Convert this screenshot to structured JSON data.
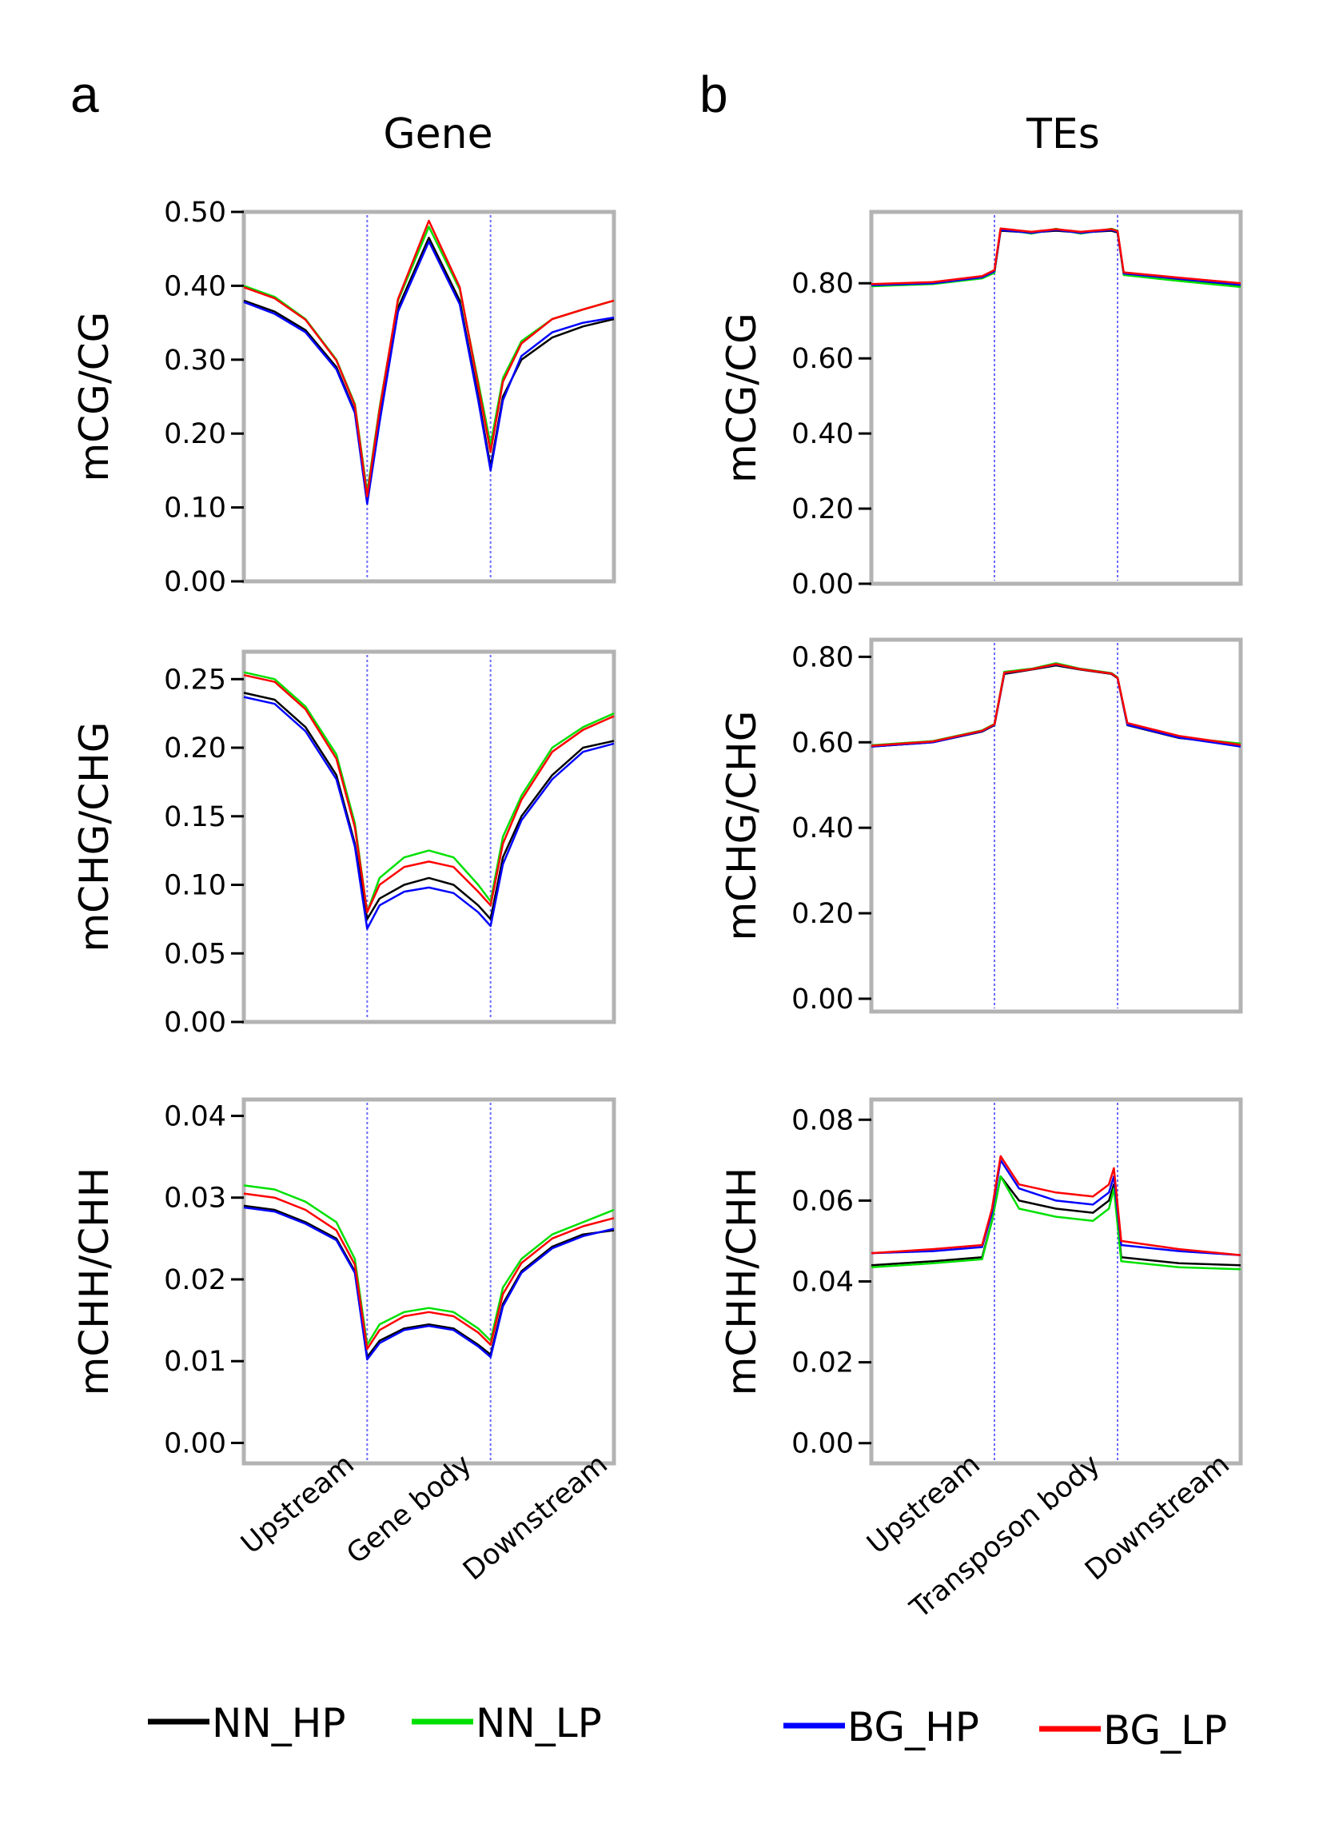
{
  "panels": {
    "a": {
      "letter": "a",
      "title": "Gene",
      "xlabels": [
        "Upstream",
        "Gene body",
        "Downstream"
      ]
    },
    "b": {
      "letter": "b",
      "title": "TEs",
      "xlabels": [
        "Upstream",
        "Transposon body",
        "Downstream"
      ]
    }
  },
  "legend": [
    {
      "name": "NN_HP",
      "color": "#000000"
    },
    {
      "name": "NN_LP",
      "color": "#00e000"
    },
    {
      "name": "BG_HP",
      "color": "#0000ff"
    },
    {
      "name": "BG_LP",
      "color": "#ff0000"
    }
  ],
  "chart_data": [
    {
      "type": "line",
      "id": "gene-cg",
      "panel": "a",
      "ylabel": "mCG/CG",
      "ylim": [
        0,
        0.5
      ],
      "yticks": [
        0,
        0.1,
        0.2,
        0.3,
        0.4,
        0.5
      ],
      "ytick_labels": [
        "0.00",
        "0.10",
        "0.20",
        "0.30",
        "0.40",
        "0.50"
      ],
      "xlim": [
        0,
        3
      ],
      "boundaries": [
        1,
        2
      ],
      "x": [
        0,
        0.25,
        0.5,
        0.75,
        0.9,
        1,
        1.1,
        1.25,
        1.5,
        1.75,
        1.9,
        2,
        2.1,
        2.25,
        2.5,
        2.75,
        3
      ],
      "series": [
        {
          "name": "NN_HP",
          "values": [
            0.38,
            0.365,
            0.34,
            0.29,
            0.23,
            0.11,
            0.22,
            0.37,
            0.465,
            0.38,
            0.25,
            0.155,
            0.25,
            0.3,
            0.33,
            0.345,
            0.355
          ]
        },
        {
          "name": "NN_LP",
          "values": [
            0.4,
            0.385,
            0.355,
            0.3,
            0.24,
            0.12,
            0.235,
            0.38,
            0.48,
            0.395,
            0.27,
            0.185,
            0.275,
            0.325,
            0.355,
            0.368,
            0.38
          ]
        },
        {
          "name": "BG_HP",
          "values": [
            0.378,
            0.362,
            0.337,
            0.287,
            0.228,
            0.105,
            0.215,
            0.365,
            0.46,
            0.375,
            0.245,
            0.15,
            0.245,
            0.305,
            0.337,
            0.35,
            0.357
          ]
        },
        {
          "name": "BG_LP",
          "values": [
            0.398,
            0.383,
            0.354,
            0.299,
            0.238,
            0.115,
            0.232,
            0.382,
            0.488,
            0.398,
            0.265,
            0.175,
            0.27,
            0.322,
            0.355,
            0.368,
            0.38
          ]
        }
      ]
    },
    {
      "type": "line",
      "id": "te-cg",
      "panel": "b",
      "ylabel": "mCG/CG",
      "ylim": [
        0,
        0.99
      ],
      "yticks": [
        0,
        0.2,
        0.4,
        0.6,
        0.8
      ],
      "ytick_labels": [
        "0.00",
        "0.20",
        "0.40",
        "0.60",
        "0.80"
      ],
      "xlim": [
        0,
        3
      ],
      "boundaries": [
        1,
        2
      ],
      "x": [
        0,
        0.5,
        0.9,
        1,
        1.05,
        1.3,
        1.5,
        1.7,
        1.95,
        2,
        2.05,
        2.5,
        3
      ],
      "series": [
        {
          "name": "NN_HP",
          "values": [
            0.795,
            0.8,
            0.815,
            0.83,
            0.94,
            0.935,
            0.94,
            0.935,
            0.94,
            0.935,
            0.825,
            0.81,
            0.795
          ]
        },
        {
          "name": "NN_LP",
          "values": [
            0.792,
            0.798,
            0.813,
            0.828,
            0.945,
            0.932,
            0.945,
            0.932,
            0.945,
            0.94,
            0.822,
            0.806,
            0.79
          ]
        },
        {
          "name": "BG_HP",
          "values": [
            0.795,
            0.8,
            0.816,
            0.832,
            0.942,
            0.934,
            0.942,
            0.934,
            0.942,
            0.937,
            0.826,
            0.812,
            0.796
          ]
        },
        {
          "name": "BG_LP",
          "values": [
            0.798,
            0.803,
            0.819,
            0.835,
            0.946,
            0.937,
            0.944,
            0.937,
            0.944,
            0.939,
            0.829,
            0.815,
            0.8
          ]
        }
      ]
    },
    {
      "type": "line",
      "id": "gene-chg",
      "panel": "a",
      "ylabel": "mCHG/CHG",
      "ylim": [
        0,
        0.27
      ],
      "yticks": [
        0,
        0.05,
        0.1,
        0.15,
        0.2,
        0.25
      ],
      "ytick_labels": [
        "0.00",
        "0.05",
        "0.10",
        "0.15",
        "0.20",
        "0.25"
      ],
      "xlim": [
        0,
        3
      ],
      "boundaries": [
        1,
        2
      ],
      "x": [
        0,
        0.25,
        0.5,
        0.75,
        0.9,
        1,
        1.1,
        1.3,
        1.5,
        1.7,
        1.9,
        2,
        2.1,
        2.25,
        2.5,
        2.75,
        3
      ],
      "series": [
        {
          "name": "NN_HP",
          "values": [
            0.24,
            0.235,
            0.215,
            0.18,
            0.13,
            0.075,
            0.09,
            0.1,
            0.105,
            0.1,
            0.085,
            0.075,
            0.12,
            0.15,
            0.18,
            0.2,
            0.205
          ]
        },
        {
          "name": "NN_LP",
          "values": [
            0.255,
            0.25,
            0.23,
            0.195,
            0.145,
            0.08,
            0.105,
            0.12,
            0.125,
            0.12,
            0.1,
            0.088,
            0.135,
            0.165,
            0.2,
            0.215,
            0.225
          ]
        },
        {
          "name": "BG_HP",
          "values": [
            0.237,
            0.232,
            0.212,
            0.177,
            0.128,
            0.068,
            0.085,
            0.095,
            0.098,
            0.094,
            0.08,
            0.07,
            0.115,
            0.147,
            0.177,
            0.197,
            0.203
          ]
        },
        {
          "name": "BG_LP",
          "values": [
            0.253,
            0.248,
            0.228,
            0.192,
            0.142,
            0.08,
            0.1,
            0.113,
            0.117,
            0.113,
            0.095,
            0.085,
            0.13,
            0.162,
            0.197,
            0.213,
            0.223
          ]
        }
      ]
    },
    {
      "type": "line",
      "id": "te-chg",
      "panel": "b",
      "ylabel": "mCHG/CHG",
      "ylim": [
        -0.03,
        0.84
      ],
      "yticks": [
        0,
        0.2,
        0.4,
        0.6,
        0.8
      ],
      "ytick_labels": [
        "0.00",
        "0.20",
        "0.40",
        "0.60",
        "0.80"
      ],
      "xlim": [
        0,
        3
      ],
      "boundaries": [
        1,
        2
      ],
      "x": [
        0,
        0.5,
        0.9,
        1,
        1.08,
        1.3,
        1.5,
        1.7,
        1.95,
        2,
        2.08,
        2.5,
        3
      ],
      "series": [
        {
          "name": "NN_HP",
          "values": [
            0.59,
            0.6,
            0.625,
            0.64,
            0.76,
            0.77,
            0.78,
            0.77,
            0.76,
            0.75,
            0.64,
            0.61,
            0.595
          ]
        },
        {
          "name": "NN_LP",
          "values": [
            0.593,
            0.603,
            0.628,
            0.643,
            0.765,
            0.772,
            0.785,
            0.772,
            0.762,
            0.752,
            0.642,
            0.612,
            0.597
          ]
        },
        {
          "name": "BG_HP",
          "values": [
            0.59,
            0.6,
            0.626,
            0.641,
            0.762,
            0.771,
            0.782,
            0.771,
            0.761,
            0.751,
            0.641,
            0.611,
            0.59
          ]
        },
        {
          "name": "BG_LP",
          "values": [
            0.592,
            0.602,
            0.627,
            0.642,
            0.763,
            0.771,
            0.783,
            0.771,
            0.761,
            0.751,
            0.645,
            0.615,
            0.594
          ]
        }
      ]
    },
    {
      "type": "line",
      "id": "gene-chh",
      "panel": "a",
      "ylabel": "mCHH/CHH",
      "ylim": [
        -0.0025,
        0.042
      ],
      "yticks": [
        0,
        0.01,
        0.02,
        0.03,
        0.04
      ],
      "ytick_labels": [
        "0.00",
        "0.01",
        "0.02",
        "0.03",
        "0.04"
      ],
      "xlim": [
        0,
        3
      ],
      "boundaries": [
        1,
        2
      ],
      "x": [
        0,
        0.25,
        0.5,
        0.75,
        0.9,
        1,
        1.1,
        1.3,
        1.5,
        1.7,
        1.9,
        2,
        2.1,
        2.25,
        2.5,
        2.75,
        3
      ],
      "series": [
        {
          "name": "NN_HP",
          "values": [
            0.029,
            0.0285,
            0.027,
            0.025,
            0.021,
            0.0105,
            0.0125,
            0.014,
            0.0145,
            0.014,
            0.012,
            0.0108,
            0.017,
            0.021,
            0.024,
            0.0255,
            0.026
          ]
        },
        {
          "name": "NN_LP",
          "values": [
            0.0315,
            0.031,
            0.0295,
            0.027,
            0.0225,
            0.012,
            0.0145,
            0.016,
            0.0165,
            0.016,
            0.014,
            0.0125,
            0.019,
            0.0225,
            0.0255,
            0.027,
            0.0285
          ]
        },
        {
          "name": "BG_HP",
          "values": [
            0.0288,
            0.0283,
            0.0268,
            0.0248,
            0.0208,
            0.0102,
            0.0122,
            0.0138,
            0.0143,
            0.0138,
            0.0118,
            0.0105,
            0.0167,
            0.0208,
            0.0238,
            0.0253,
            0.0262
          ]
        },
        {
          "name": "BG_LP",
          "values": [
            0.0305,
            0.03,
            0.0285,
            0.026,
            0.0218,
            0.0115,
            0.0138,
            0.0155,
            0.016,
            0.0155,
            0.0135,
            0.012,
            0.0182,
            0.022,
            0.025,
            0.0265,
            0.0275
          ]
        }
      ]
    },
    {
      "type": "line",
      "id": "te-chh",
      "panel": "b",
      "ylabel": "mCHH/CHH",
      "ylim": [
        -0.005,
        0.085
      ],
      "yticks": [
        0,
        0.02,
        0.04,
        0.06,
        0.08
      ],
      "ytick_labels": [
        "0.00",
        "0.02",
        "0.04",
        "0.06",
        "0.08"
      ],
      "xlim": [
        0,
        3
      ],
      "boundaries": [
        1,
        2
      ],
      "x": [
        0,
        0.5,
        0.9,
        0.98,
        1.05,
        1.2,
        1.5,
        1.8,
        1.93,
        1.97,
        2.03,
        2.5,
        3
      ],
      "series": [
        {
          "name": "NN_HP",
          "values": [
            0.044,
            0.045,
            0.046,
            0.055,
            0.066,
            0.06,
            0.058,
            0.057,
            0.06,
            0.064,
            0.046,
            0.0445,
            0.044
          ]
        },
        {
          "name": "NN_LP",
          "values": [
            0.0435,
            0.0445,
            0.0455,
            0.055,
            0.066,
            0.058,
            0.056,
            0.055,
            0.058,
            0.063,
            0.045,
            0.0435,
            0.043
          ]
        },
        {
          "name": "BG_HP",
          "values": [
            0.047,
            0.0475,
            0.0485,
            0.057,
            0.07,
            0.063,
            0.06,
            0.059,
            0.062,
            0.066,
            0.049,
            0.0475,
            0.0465
          ]
        },
        {
          "name": "BG_LP",
          "values": [
            0.047,
            0.048,
            0.049,
            0.058,
            0.071,
            0.064,
            0.062,
            0.061,
            0.064,
            0.068,
            0.05,
            0.048,
            0.0465
          ]
        }
      ]
    }
  ]
}
